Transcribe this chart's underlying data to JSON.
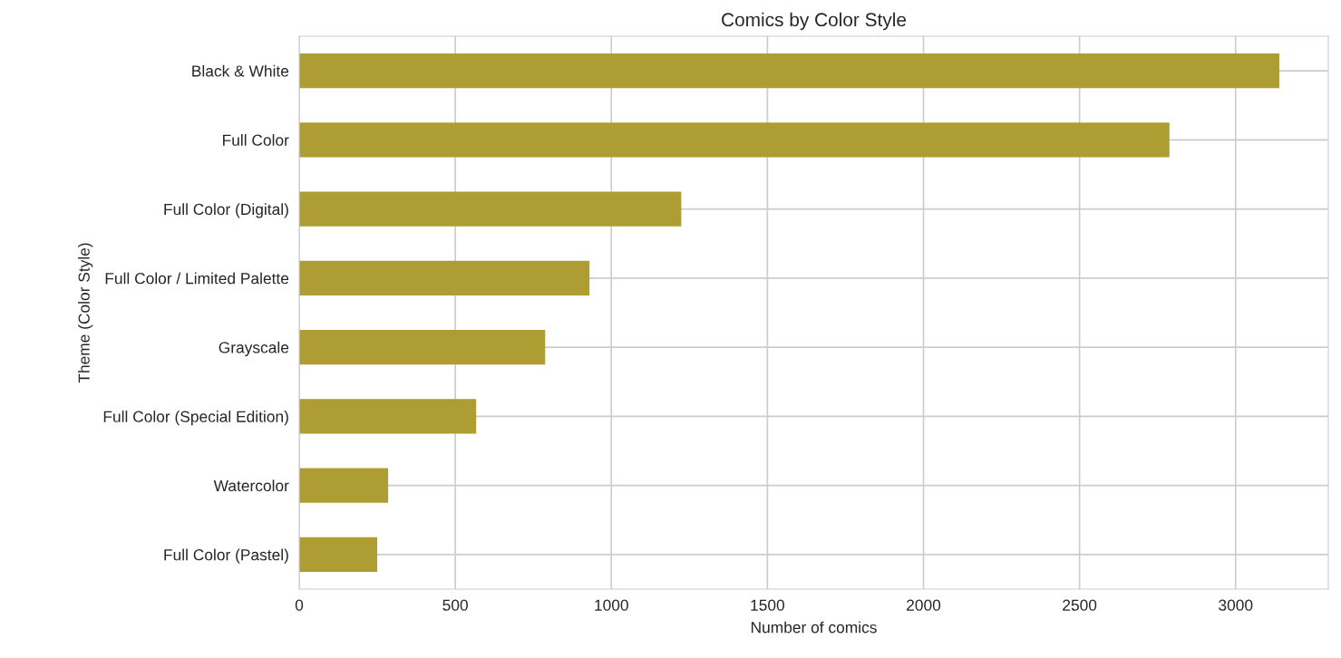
{
  "chart_data": {
    "type": "bar",
    "orientation": "horizontal",
    "title": "Comics by Color Style",
    "xlabel": "Number of comics",
    "ylabel": "Theme (Color Style)",
    "categories": [
      "Black & White",
      "Full Color",
      "Full Color (Digital)",
      "Full Color / Limited Palette",
      "Grayscale",
      "Full Color (Special Edition)",
      "Watercolor",
      "Full Color (Pastel)"
    ],
    "values": [
      3140,
      2788,
      1224,
      930,
      788,
      567,
      285,
      250
    ],
    "color": "#ad9d33",
    "xlim": [
      0,
      3297
    ],
    "xticks": [
      0,
      500,
      1000,
      1500,
      2000,
      2500,
      3000
    ],
    "grid": true,
    "legend": false
  }
}
